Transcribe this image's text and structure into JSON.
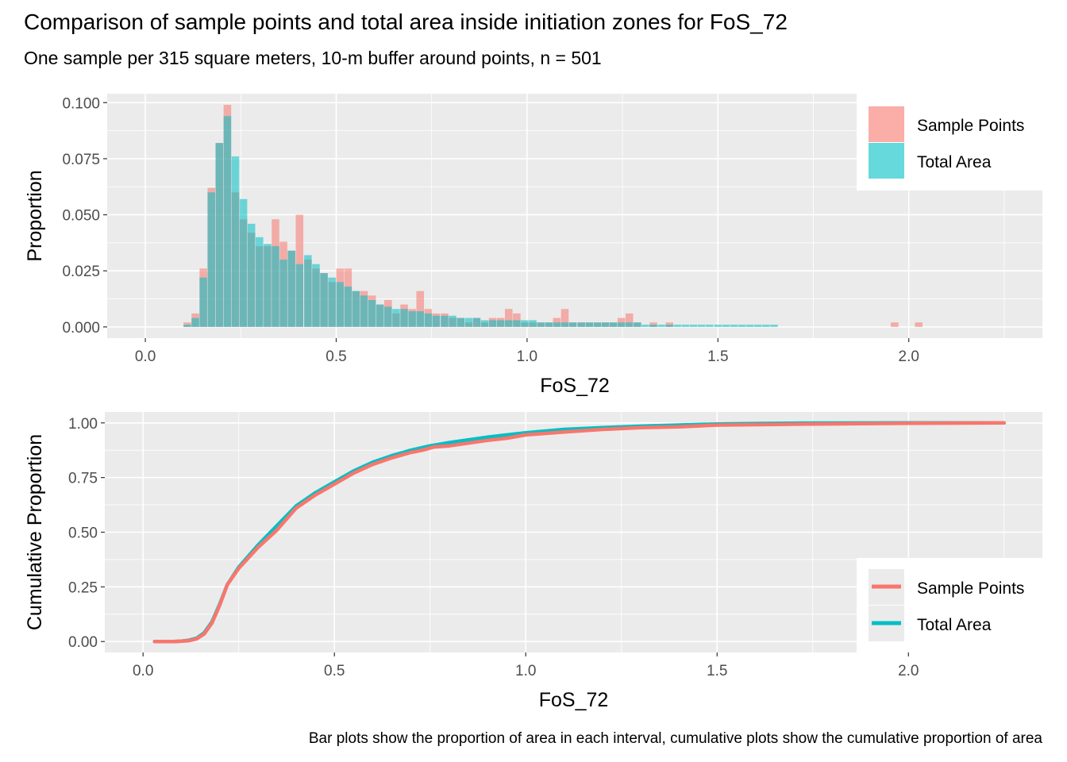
{
  "title": "Comparison of sample points and total area inside initiation zones for FoS_72",
  "subtitle": "One sample per 315 square meters, 10-m buffer around points, n = 501",
  "caption": "Bar plots show the proportion of area in each interval, cumulative plots show the cumulative proportion of area",
  "colors": {
    "sample": "#F8766D",
    "area": "#00BFC4",
    "panel": "#EBEBEB",
    "grid": "#FFFFFF"
  },
  "chart_data": [
    {
      "type": "bar",
      "xlabel": "FoS_72",
      "ylabel": "Proportion",
      "xlim": [
        -0.1,
        2.35
      ],
      "ylim": [
        -0.005,
        0.104
      ],
      "x_ticks": [
        0.0,
        0.5,
        1.0,
        1.5,
        2.0
      ],
      "x_tick_labels": [
        "0.0",
        "0.5",
        "1.0",
        "1.5",
        "2.0"
      ],
      "y_ticks": [
        0.0,
        0.025,
        0.05,
        0.075,
        0.1
      ],
      "y_tick_labels": [
        "0.000",
        "0.025",
        "0.050",
        "0.075",
        "0.100"
      ],
      "bin_width": 0.0211,
      "x": [
        0.1,
        0.121,
        0.142,
        0.163,
        0.184,
        0.205,
        0.226,
        0.247,
        0.268,
        0.289,
        0.31,
        0.331,
        0.352,
        0.373,
        0.394,
        0.416,
        0.437,
        0.458,
        0.479,
        0.5,
        0.521,
        0.542,
        0.563,
        0.584,
        0.605,
        0.626,
        0.647,
        0.668,
        0.689,
        0.71,
        0.731,
        0.752,
        0.774,
        0.795,
        0.816,
        0.837,
        0.858,
        0.879,
        0.9,
        0.921,
        0.942,
        0.963,
        0.984,
        1.005,
        1.026,
        1.047,
        1.068,
        1.089,
        1.11,
        1.132,
        1.153,
        1.174,
        1.195,
        1.216,
        1.237,
        1.258,
        1.279,
        1.3,
        1.321,
        1.342,
        1.363,
        1.384,
        1.405,
        1.426,
        1.447,
        1.468,
        1.49,
        1.511,
        1.532,
        1.553,
        1.574,
        1.595,
        1.616,
        1.637,
        1.658,
        1.679,
        1.7,
        1.721,
        1.742,
        1.763,
        1.784,
        1.805,
        1.826,
        1.848,
        1.869,
        1.89,
        1.911,
        1.932,
        1.953,
        1.974,
        1.995,
        2.016
      ],
      "grouped": true,
      "series": [
        {
          "name": "Sample Points",
          "color": "#F8766D",
          "values": [
            0.002,
            0.006,
            0.026,
            0.062,
            0.082,
            0.099,
            0.06,
            0.048,
            0.042,
            0.036,
            0.036,
            0.048,
            0.038,
            0.034,
            0.05,
            0.03,
            0.026,
            0.024,
            0.02,
            0.026,
            0.026,
            0.016,
            0.016,
            0.014,
            0.01,
            0.012,
            0.006,
            0.01,
            0.008,
            0.016,
            0.008,
            0.006,
            0.006,
            0.004,
            0.004,
            0.002,
            0.004,
            0.002,
            0.004,
            0.004,
            0.008,
            0.006,
            0.002,
            0.002,
            0.002,
            0.002,
            0.004,
            0.008,
            0.002,
            0.002,
            0.002,
            0.002,
            0.002,
            0.002,
            0.004,
            0.006,
            0.002,
            0,
            0.002,
            0,
            0.002,
            0,
            0,
            0,
            0,
            0,
            0,
            0,
            0,
            0,
            0,
            0,
            0,
            0,
            0,
            0,
            0,
            0,
            0,
            0,
            0,
            0,
            0,
            0,
            0,
            0,
            0,
            0,
            0.002,
            0,
            0,
            0.002
          ]
        },
        {
          "name": "Total Area",
          "color": "#00BFC4",
          "values": [
            0.001,
            0.004,
            0.022,
            0.06,
            0.082,
            0.094,
            0.076,
            0.057,
            0.046,
            0.04,
            0.037,
            0.036,
            0.03,
            0.034,
            0.028,
            0.032,
            0.028,
            0.024,
            0.022,
            0.02,
            0.018,
            0.016,
            0.014,
            0.012,
            0.01,
            0.009,
            0.008,
            0.008,
            0.007,
            0.007,
            0.006,
            0.005,
            0.005,
            0.005,
            0.004,
            0.004,
            0.004,
            0.003,
            0.003,
            0.003,
            0.003,
            0.003,
            0.003,
            0.003,
            0.002,
            0.002,
            0.002,
            0.002,
            0.002,
            0.002,
            0.002,
            0.002,
            0.002,
            0.002,
            0.002,
            0.002,
            0.002,
            0.001,
            0.001,
            0.001,
            0.001,
            0.001,
            0.001,
            0.001,
            0.001,
            0.001,
            0.001,
            0.001,
            0.001,
            0.001,
            0.001,
            0.001,
            0.001,
            0.001,
            0,
            0,
            0,
            0,
            0,
            0,
            0,
            0,
            0,
            0,
            0,
            0,
            0,
            0,
            0,
            0,
            0,
            0
          ]
        }
      ],
      "legend": {
        "entries": [
          "Sample Points",
          "Total Area"
        ],
        "placement": "top-right"
      },
      "grid": true
    },
    {
      "type": "line",
      "xlabel": "FoS_72",
      "ylabel": "Cumulative Proportion",
      "xlim": [
        -0.1,
        2.35
      ],
      "ylim": [
        -0.05,
        1.05
      ],
      "x_ticks": [
        0.0,
        0.5,
        1.0,
        1.5,
        2.0
      ],
      "x_tick_labels": [
        "0.0",
        "0.5",
        "1.0",
        "1.5",
        "2.0"
      ],
      "y_ticks": [
        0.0,
        0.25,
        0.5,
        0.75,
        1.0
      ],
      "y_tick_labels": [
        "0.00",
        "0.25",
        "0.50",
        "0.75",
        "1.00"
      ],
      "series": [
        {
          "name": "Total Area",
          "color": "#00BFC4",
          "x": [
            0.03,
            0.08,
            0.1,
            0.12,
            0.14,
            0.16,
            0.18,
            0.2,
            0.22,
            0.25,
            0.3,
            0.35,
            0.4,
            0.45,
            0.5,
            0.55,
            0.6,
            0.65,
            0.7,
            0.75,
            0.8,
            0.9,
            1.0,
            1.1,
            1.2,
            1.3,
            1.4,
            1.5,
            1.6,
            1.75,
            2.0,
            2.25
          ],
          "y": [
            0,
            0,
            0.002,
            0.006,
            0.015,
            0.04,
            0.09,
            0.17,
            0.26,
            0.34,
            0.44,
            0.53,
            0.62,
            0.68,
            0.73,
            0.78,
            0.82,
            0.85,
            0.875,
            0.895,
            0.91,
            0.935,
            0.955,
            0.97,
            0.978,
            0.985,
            0.99,
            0.995,
            0.997,
            0.999,
            1.0,
            1.0
          ]
        },
        {
          "name": "Sample Points",
          "color": "#F8766D",
          "x": [
            0.03,
            0.08,
            0.1,
            0.12,
            0.14,
            0.16,
            0.18,
            0.2,
            0.22,
            0.25,
            0.3,
            0.35,
            0.4,
            0.45,
            0.5,
            0.55,
            0.6,
            0.65,
            0.7,
            0.73,
            0.76,
            0.8,
            0.9,
            0.95,
            1.0,
            1.1,
            1.2,
            1.3,
            1.4,
            1.5,
            1.6,
            1.75,
            2.0,
            2.25
          ],
          "y": [
            0,
            0,
            0.002,
            0.004,
            0.012,
            0.035,
            0.085,
            0.165,
            0.26,
            0.335,
            0.43,
            0.51,
            0.61,
            0.67,
            0.72,
            0.77,
            0.81,
            0.84,
            0.865,
            0.875,
            0.89,
            0.895,
            0.92,
            0.93,
            0.945,
            0.958,
            0.97,
            0.978,
            0.982,
            0.99,
            0.992,
            0.995,
            0.998,
            1.0
          ]
        }
      ],
      "legend": {
        "entries": [
          "Sample Points",
          "Total Area"
        ],
        "placement": "bottom-right"
      },
      "grid": true
    }
  ]
}
